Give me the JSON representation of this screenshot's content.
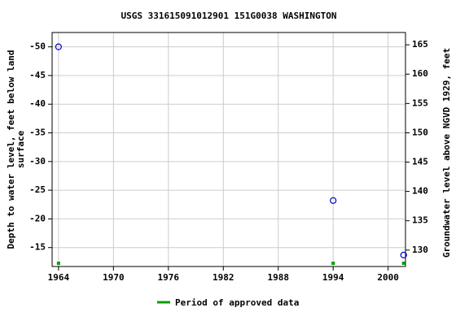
{
  "chart_data": {
    "type": "scatter",
    "title": "USGS 331615091012901 151G0038  WASHINGTON",
    "ylabel": [
      "Depth to water level, feet below land",
      "surface"
    ],
    "y2label": "Groundwater level above NGVD 1929, feet",
    "x": [
      1964,
      1994,
      2001.7
    ],
    "values": [
      -50,
      -23.2,
      -13.7
    ],
    "color": "#0000cc",
    "approved": {
      "name": "Period of approved data",
      "color": "#00a000",
      "x": [
        1964,
        1994,
        2001.7
      ]
    },
    "xlim": [
      1963.3,
      2001.9
    ],
    "xticks": [
      1964,
      1970,
      1976,
      1982,
      1988,
      1994,
      2000
    ],
    "ylim": [
      -11.7,
      -52.5
    ],
    "yticks": [
      -50,
      -45,
      -40,
      -35,
      -30,
      -25,
      -20,
      -15
    ],
    "y2lim": [
      127.2,
      167.1
    ],
    "y2ticks": [
      130,
      135,
      140,
      145,
      150,
      155,
      160,
      165
    ],
    "grid": true
  }
}
